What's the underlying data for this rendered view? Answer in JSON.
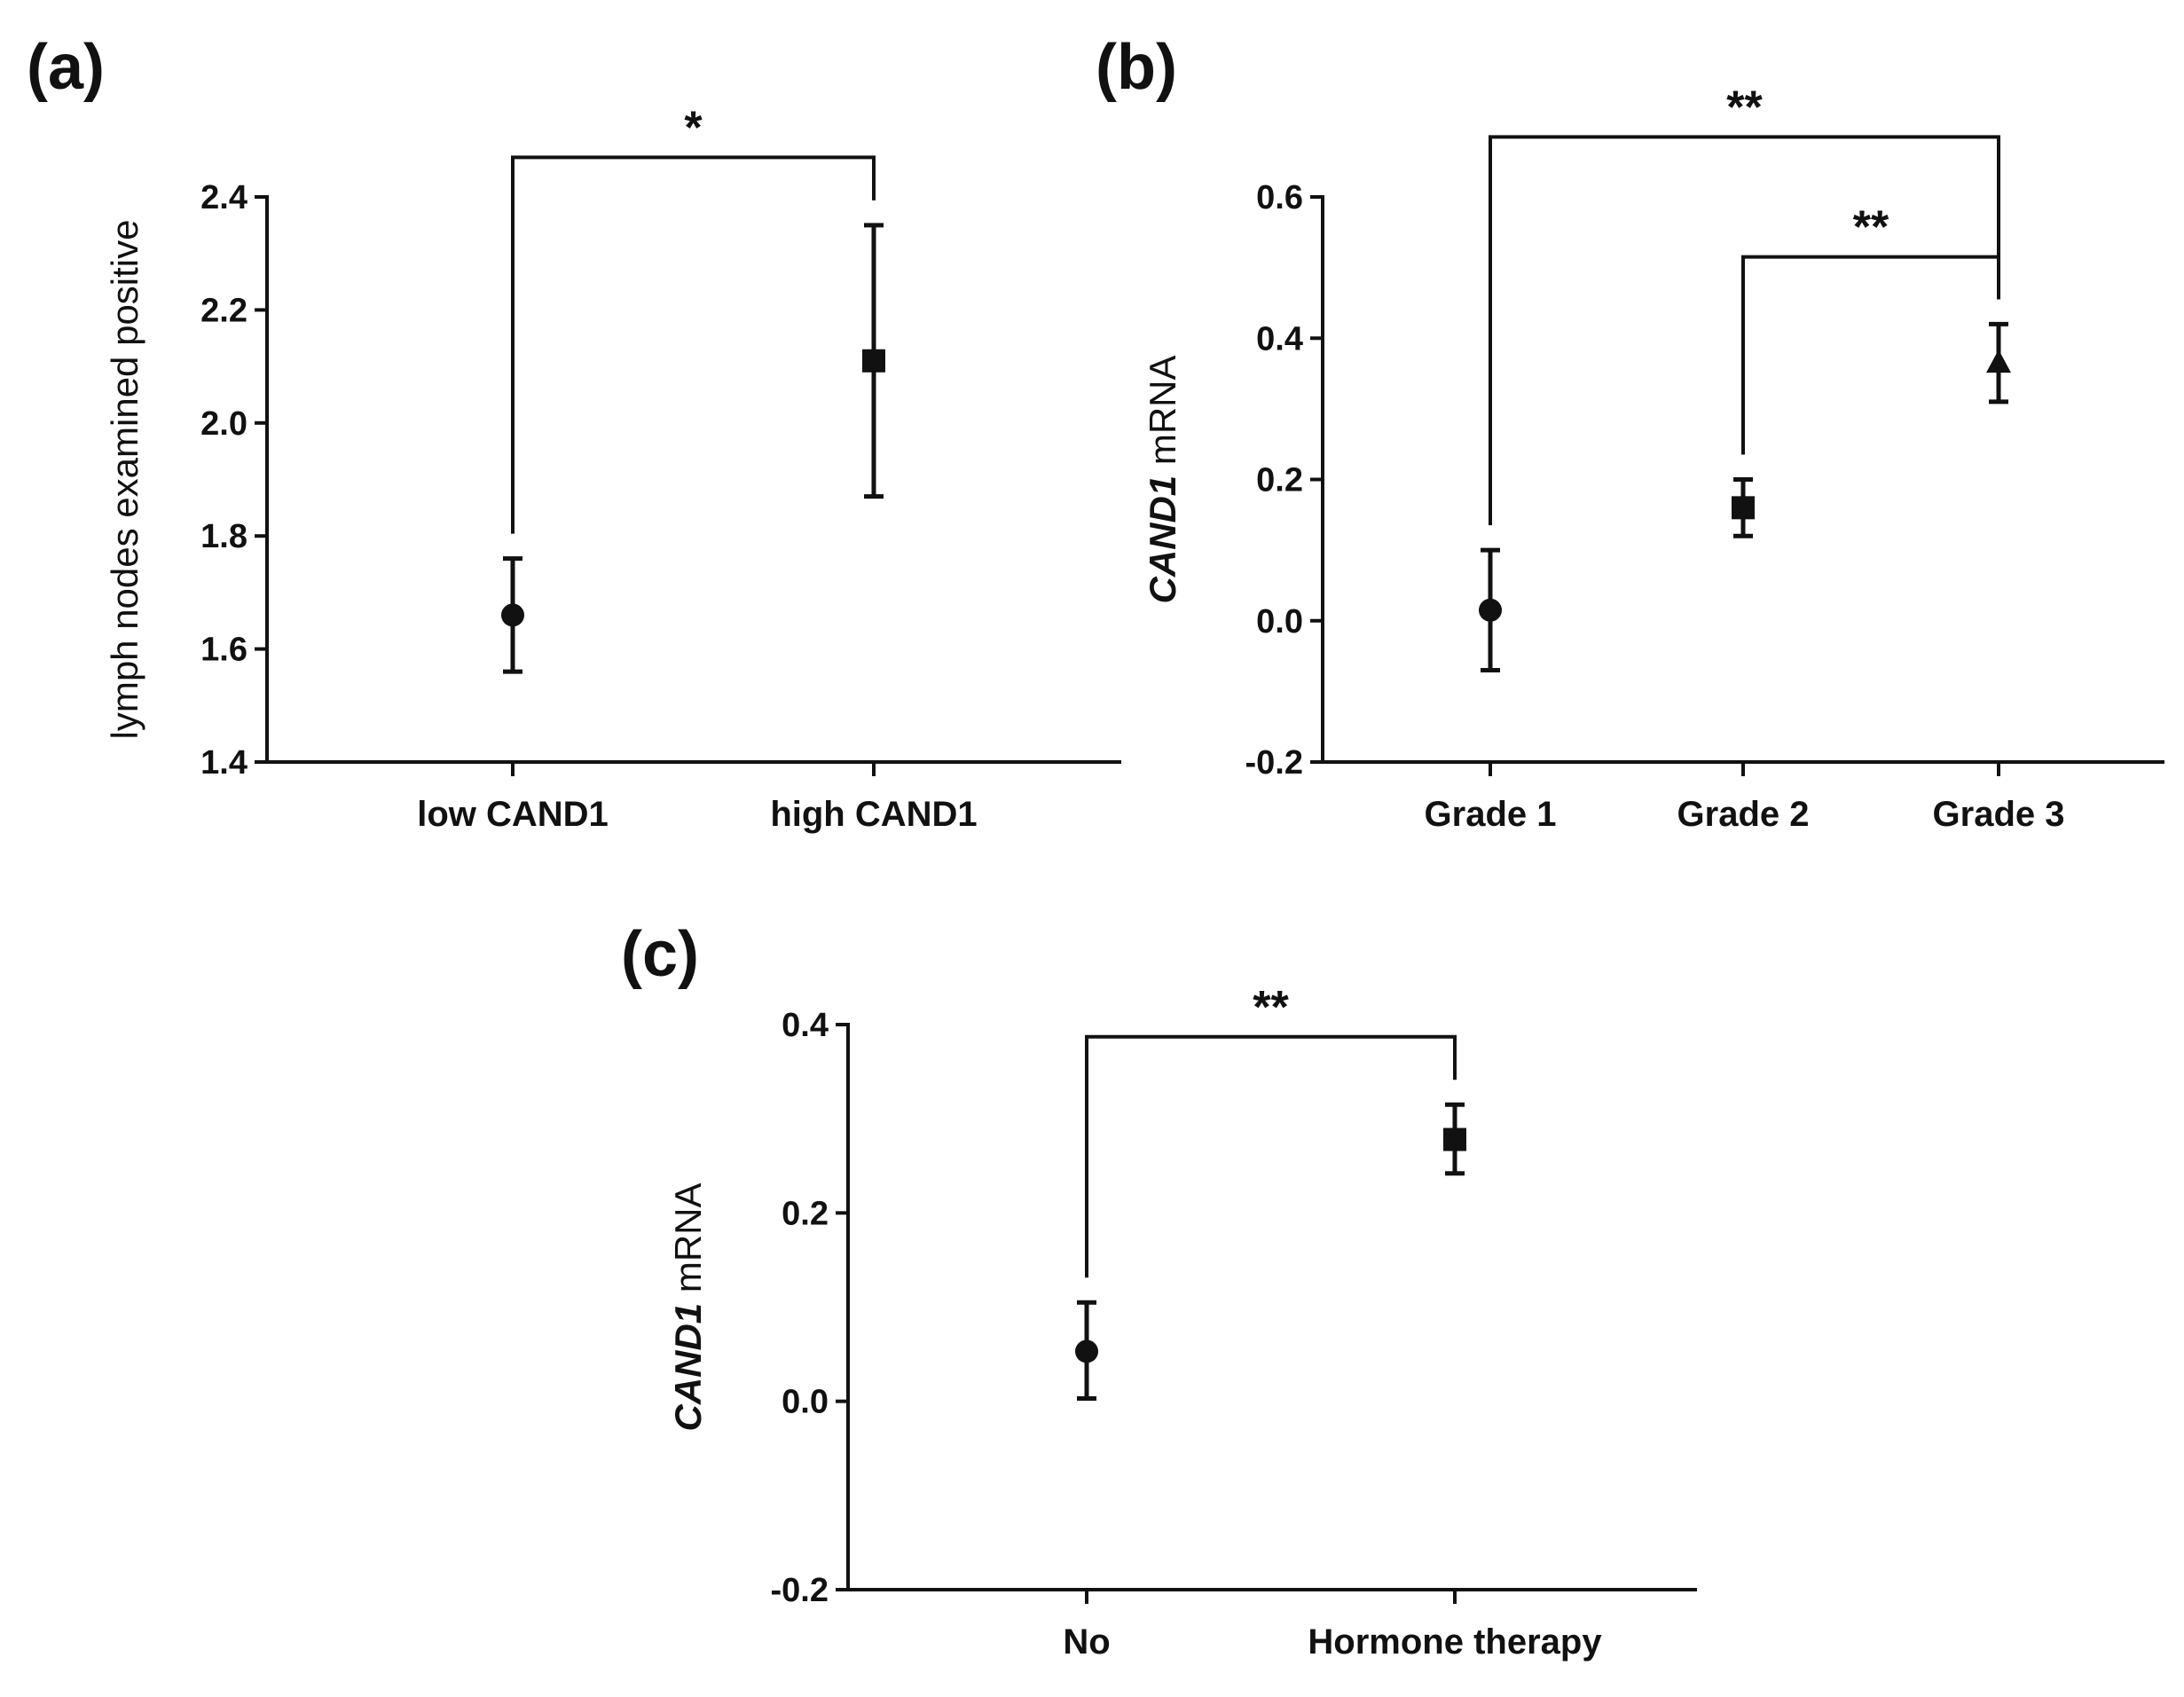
{
  "chart_data": [
    {
      "type": "scatter",
      "panel_label": "(a)",
      "ylabel": "lymph nodes examined positive",
      "ylabel_parts": [
        {
          "text": "lymph nodes examined positive",
          "italic": false
        }
      ],
      "categories": [
        "low CAND1",
        "high CAND1"
      ],
      "values": [
        1.66,
        2.11
      ],
      "errors_low": [
        1.56,
        1.87
      ],
      "errors_high": [
        1.76,
        2.35
      ],
      "markers": [
        "circle",
        "square"
      ],
      "ylim": [
        1.4,
        2.4
      ],
      "yticks": [
        1.4,
        1.6,
        1.8,
        2.0,
        2.2,
        2.4
      ],
      "ytick_labels": [
        "1.4",
        "1.6",
        "1.8",
        "2.0",
        "2.2",
        "2.4"
      ],
      "significance": [
        {
          "from": 0,
          "to": 1,
          "label": "*",
          "y": 2.47
        }
      ]
    },
    {
      "type": "scatter",
      "panel_label": "(b)",
      "ylabel": "CAND1 mRNA",
      "ylabel_parts": [
        {
          "text": "CAND1",
          "italic": true
        },
        {
          "text": " mRNA",
          "italic": false
        }
      ],
      "categories": [
        "Grade 1",
        "Grade 2",
        "Grade 3"
      ],
      "values": [
        0.015,
        0.16,
        0.365
      ],
      "errors_low": [
        -0.07,
        0.12,
        0.31
      ],
      "errors_high": [
        0.1,
        0.2,
        0.42
      ],
      "markers": [
        "circle",
        "square",
        "triangle"
      ],
      "ylim": [
        -0.2,
        0.6
      ],
      "yticks": [
        -0.2,
        0.0,
        0.2,
        0.4,
        0.6
      ],
      "ytick_labels": [
        "-0.2",
        "0.0",
        "0.2",
        "0.4",
        "0.6"
      ],
      "significance": [
        {
          "from": 0,
          "to": 2,
          "label": "**",
          "y": 0.685
        },
        {
          "from": 1,
          "to": 2,
          "label": "**",
          "y": 0.515
        }
      ]
    },
    {
      "type": "scatter",
      "panel_label": "(c)",
      "ylabel": "CAND1 mRNA",
      "ylabel_parts": [
        {
          "text": "CAND1",
          "italic": true
        },
        {
          "text": " mRNA",
          "italic": false
        }
      ],
      "categories": [
        "No",
        "Hormone therapy"
      ],
      "values": [
        0.053,
        0.278
      ],
      "errors_low": [
        0.003,
        0.242
      ],
      "errors_high": [
        0.105,
        0.315
      ],
      "markers": [
        "circle",
        "square"
      ],
      "ylim": [
        -0.2,
        0.4
      ],
      "yticks": [
        -0.2,
        0.0,
        0.2,
        0.4
      ],
      "ytick_labels": [
        "-0.2",
        "0.0",
        "0.2",
        "0.4"
      ],
      "significance": [
        {
          "from": 0,
          "to": 1,
          "label": "**",
          "y": 0.387
        }
      ]
    }
  ]
}
